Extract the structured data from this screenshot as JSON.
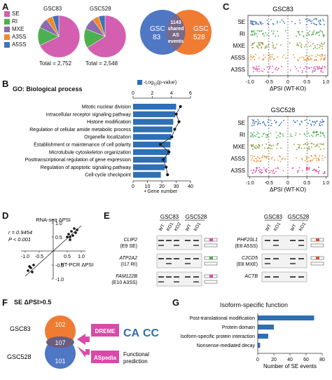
{
  "panel_letters": {
    "a": "A",
    "b": "B",
    "c": "C",
    "d": "D",
    "e": "E",
    "f": "F",
    "g": "G"
  },
  "panelA": {
    "legend": [
      {
        "label": "SE",
        "color": "#d45fb1"
      },
      {
        "label": "RI",
        "color": "#4bb14e"
      },
      {
        "label": "MXE",
        "color": "#8c6bb1"
      },
      {
        "label": "A3SS",
        "color": "#f08a2b"
      },
      {
        "label": "A5SS",
        "color": "#3f72b8"
      }
    ],
    "pie1": {
      "title": "GSC83",
      "total": "Total = 2,752",
      "values": [
        0.68,
        0.14,
        0.08,
        0.05,
        0.05
      ]
    },
    "pie2": {
      "title": "GSC528",
      "total": "Total = 2,548",
      "values": [
        0.66,
        0.15,
        0.09,
        0.05,
        0.05
      ]
    },
    "venn": {
      "left": "GSC\n83",
      "left1": "GSC",
      "left2": "83",
      "right1": "GSC",
      "right2": "528",
      "shared1": "1143",
      "shared2": "shared",
      "shared3": "AS",
      "shared4": "events",
      "left_color": "#4f77c4",
      "right_color": "#f07b33"
    }
  },
  "panelB": {
    "title": "GO: Biological process",
    "legend_bar": "-Log",
    "legend_bar_sub": "10",
    "legend_bar_rest": "(p-value)",
    "legend_dot": "Gene number",
    "top_ticks": [
      "0",
      "2",
      "4",
      "6"
    ],
    "bottom_ticks": [
      "0",
      "10",
      "20",
      "30",
      "40"
    ],
    "chart_data": {
      "type": "bar",
      "categories": [
        "Mitotic nuclear division",
        "Intracellular receptor signaling pathway",
        "Histone modification",
        "Regulation of cellular amide metabolic process",
        "Organelle localization",
        "Establishment or maintenance of cell polarity",
        "Microtubule cytoskeleton organization",
        "Posttranscriptional regulation of gene expression",
        "Regulation of apoptotic signaling pathway",
        "Cell-cycle checkpoint"
      ],
      "series": [
        {
          "name": "-Log10(p-value)",
          "values": [
            4.5,
            4.4,
            4.2,
            4.1,
            4.0,
            3.9,
            3.8,
            3.5,
            3.3,
            2.9
          ]
        },
        {
          "name": "Gene number",
          "values": [
            33,
            30,
            32,
            29,
            27,
            19,
            25,
            21,
            23,
            24
          ]
        }
      ],
      "xlim_bar": [
        0,
        6
      ],
      "xlim_dot": [
        0,
        40
      ]
    }
  },
  "panelC": {
    "top": {
      "title": "GSC83",
      "xlabel": "ΔPSI (WT-KO)"
    },
    "bottom": {
      "title": "GSC528",
      "xlabel": "ΔPSI (WT-KO)"
    },
    "rows": [
      {
        "label": "SE",
        "color": "#3f72b8"
      },
      {
        "label": "RI",
        "color": "#4bb14e"
      },
      {
        "label": "MXE",
        "color": "#8f9a3a"
      },
      {
        "label": "A5SS",
        "color": "#f08a2b"
      },
      {
        "label": "A3SS",
        "color": "#d94aa8"
      }
    ],
    "ticks": [
      "-1.0",
      "-0.5",
      "0",
      "0.5",
      "1.0"
    ]
  },
  "panelD": {
    "ylabel": "RNA-seq ΔPSI",
    "xlabel": "RT-PCR ΔPSI",
    "r": "r = 0.9454",
    "p": "P < 0.001",
    "ticks": [
      "-1.0",
      "-0.5",
      "0.5",
      "1.0"
    ],
    "chart_data": {
      "type": "scatter",
      "points": [
        [
          -0.9,
          -0.7
        ],
        [
          -0.85,
          -0.55
        ],
        [
          -0.8,
          -0.6
        ],
        [
          -0.7,
          -0.5
        ],
        [
          -0.75,
          -0.75
        ],
        [
          0.5,
          0.5
        ],
        [
          0.55,
          0.6
        ],
        [
          0.6,
          0.5
        ],
        [
          0.65,
          0.7
        ],
        [
          0.7,
          0.55
        ],
        [
          0.75,
          0.8
        ],
        [
          0.8,
          0.65
        ],
        [
          0.85,
          0.75
        ],
        [
          0.6,
          0.4
        ]
      ]
    }
  },
  "panelE": {
    "left_header": [
      "GSC83",
      "GSC528"
    ],
    "right_header": [
      "GSC83",
      "GSC528"
    ],
    "lanes": [
      "WT",
      "KO1",
      "KO2",
      "WT",
      "KO1"
    ],
    "lanes_right": [
      "WT",
      "KO1",
      "WT",
      "KO1"
    ],
    "left_genes": [
      {
        "gene": "CLIP2",
        "event": "(E9 SE)"
      },
      {
        "gene": "ATP2A2",
        "event": "(I17 RI)"
      },
      {
        "gene": "FAM122B",
        "event": "(E10 A3SS)"
      }
    ],
    "right_genes": [
      {
        "gene": "PHF20L1",
        "event": "(E8 A5SS)"
      },
      {
        "gene": "C2CD5",
        "event": "(E8 MXE)"
      },
      {
        "gene": "ACTB",
        "event": ""
      }
    ]
  },
  "panelF": {
    "title": "SE ΔPSI>0.5",
    "label1": "GSC83",
    "label2": "GSC528",
    "n1": "102",
    "n_shared": "107",
    "n2": "101",
    "box1": "DREME",
    "box2": "ASpedia",
    "functional": "Functional prediction",
    "functional1": "Functional",
    "functional2": "prediction",
    "motif": "CA",
    "motif2": "CC"
  },
  "panelG": {
    "title": "Isoform-specific function",
    "xlabel": "Number of SE events",
    "ticks": [
      "0",
      "20",
      "40",
      "60",
      "80"
    ],
    "chart_data": {
      "type": "bar",
      "categories": [
        "Post-translational modification",
        "Protein domain",
        "Isoform-specific protein interaction",
        "Nonsense-mediated decay"
      ],
      "values": [
        70,
        20,
        13,
        3
      ],
      "xlim": [
        0,
        80
      ]
    }
  }
}
